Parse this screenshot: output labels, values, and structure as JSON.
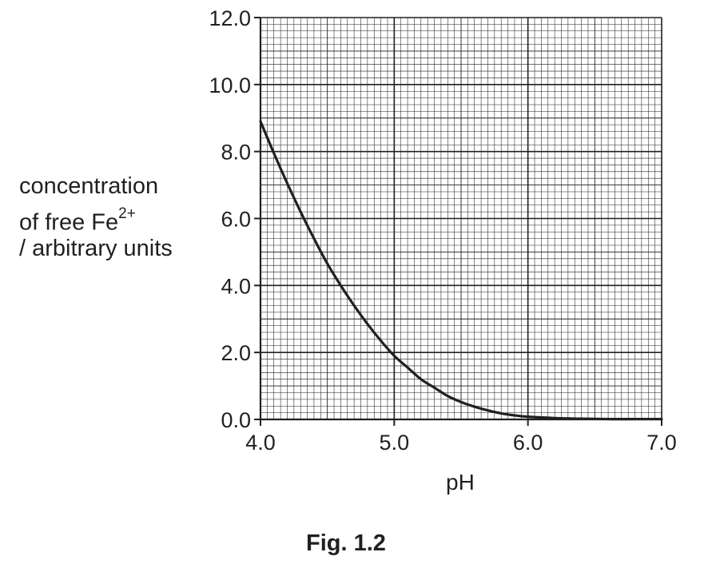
{
  "chart_data": {
    "type": "line",
    "title": "",
    "xlabel": "pH",
    "ylabel_lines": [
      "concentration",
      "of free Fe",
      "/ arbitrary units"
    ],
    "ylabel_superscript": "2+",
    "xlim": [
      4.0,
      7.0
    ],
    "ylim": [
      0.0,
      12.0
    ],
    "x_ticks": [
      "4.0",
      "5.0",
      "6.0",
      "7.0"
    ],
    "y_ticks": [
      "0.0",
      "2.0",
      "4.0",
      "6.0",
      "8.0",
      "10.0",
      "12.0"
    ],
    "grid": true,
    "series": [
      {
        "x": [
          4.0,
          4.1,
          4.2,
          4.3,
          4.4,
          4.5,
          4.6,
          4.7,
          4.8,
          4.9,
          5.0,
          5.1,
          5.2,
          5.3,
          5.4,
          5.5,
          5.6,
          5.7,
          5.8,
          5.9,
          6.0,
          6.2,
          6.4,
          6.6,
          6.8,
          7.0
        ],
        "y": [
          8.9,
          7.95,
          7.05,
          6.2,
          5.4,
          4.65,
          4.0,
          3.4,
          2.85,
          2.35,
          1.9,
          1.55,
          1.2,
          0.95,
          0.7,
          0.52,
          0.38,
          0.27,
          0.18,
          0.12,
          0.08,
          0.04,
          0.02,
          0.01,
          0.01,
          0.01
        ]
      }
    ]
  },
  "caption": "Fig. 1.2"
}
